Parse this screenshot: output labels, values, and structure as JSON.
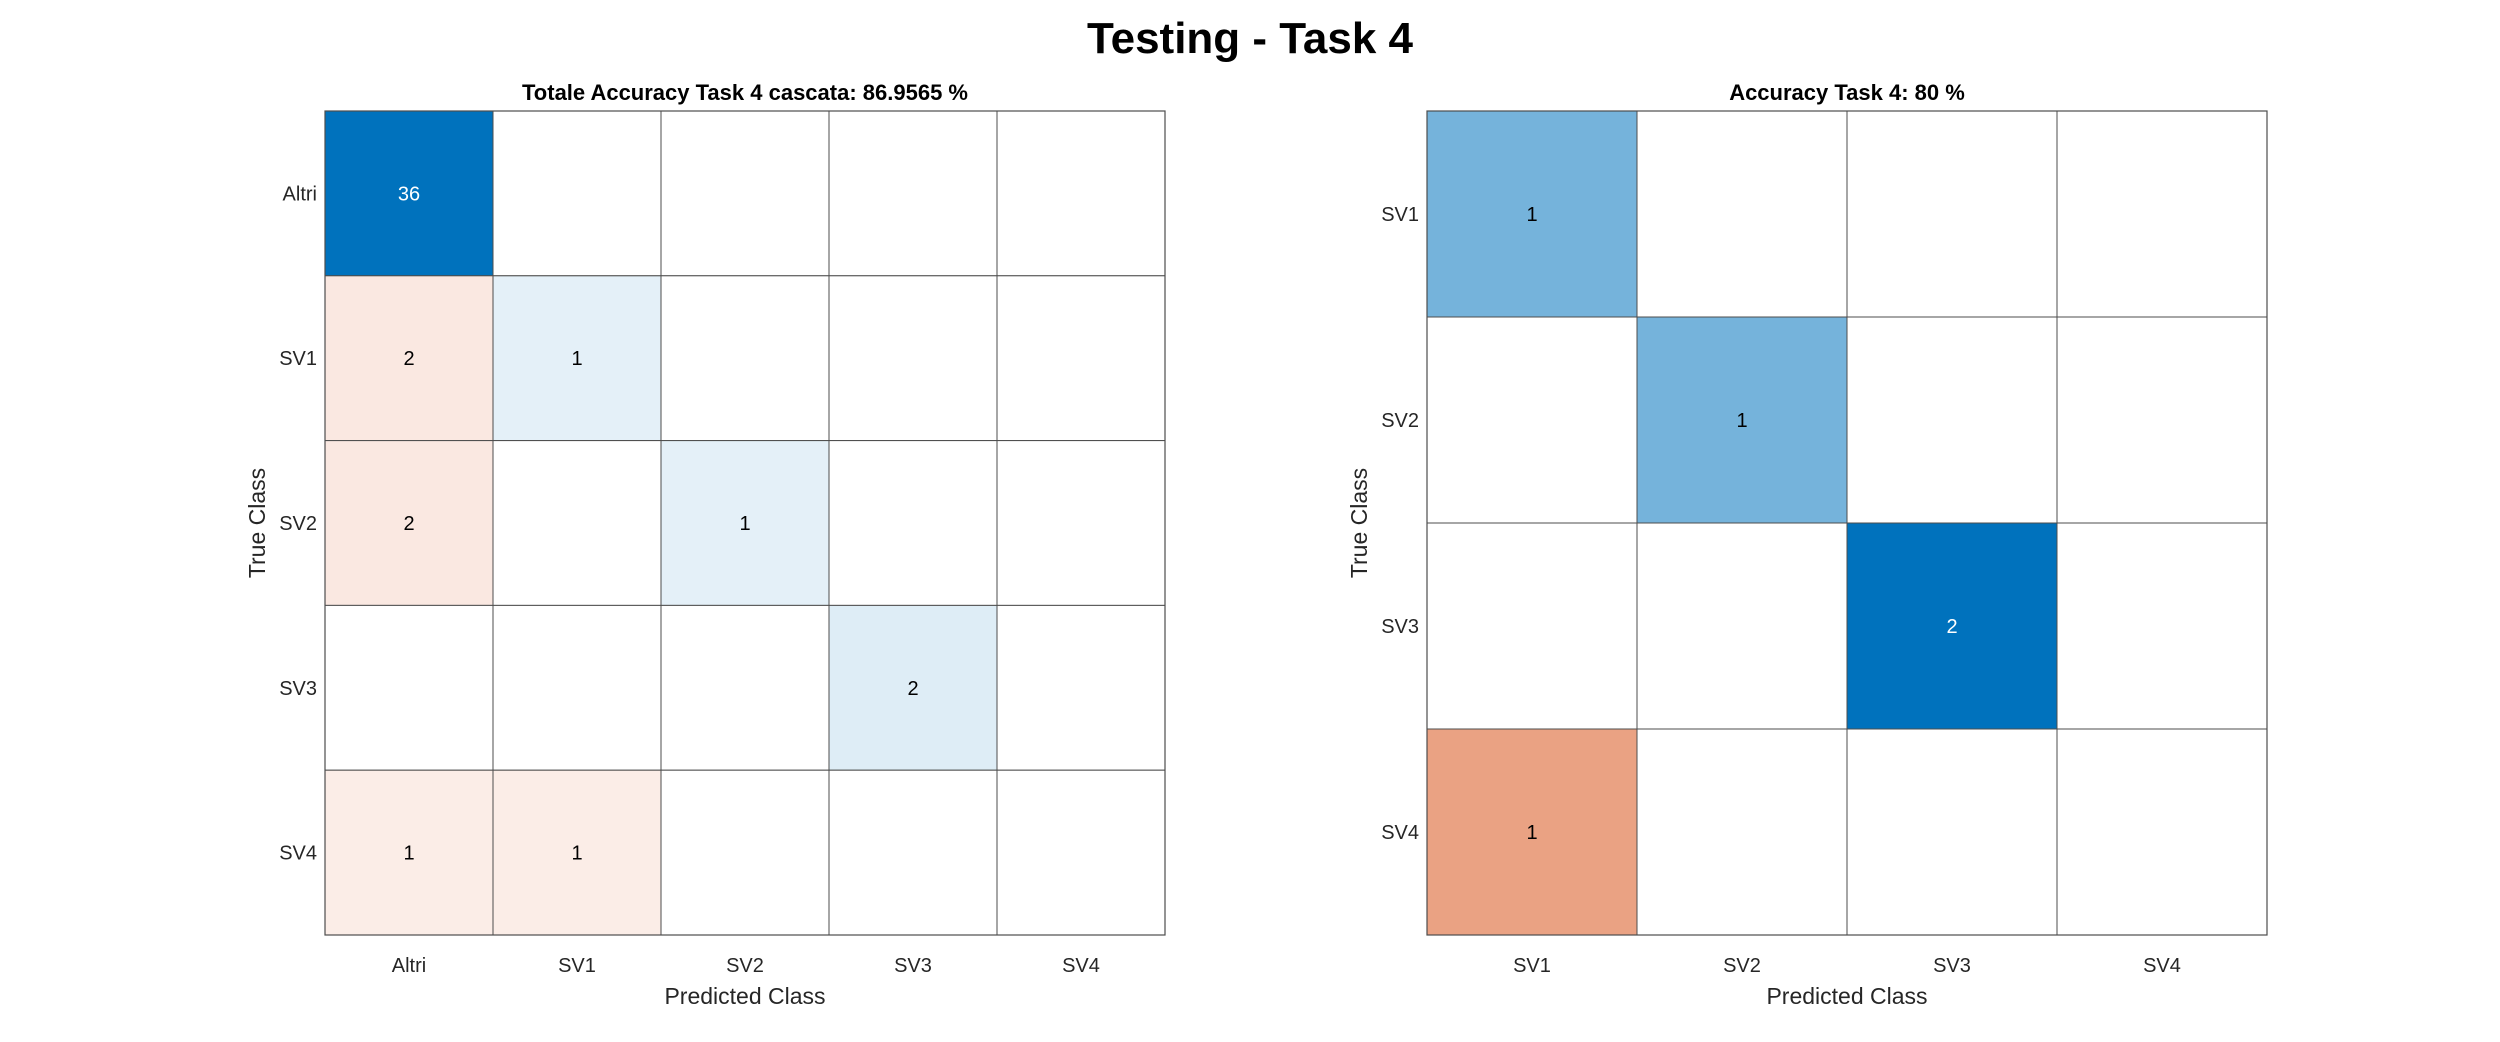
{
  "figure": {
    "title": "Testing - Task 4"
  },
  "chart_data": [
    {
      "type": "heatmap",
      "title": "Totale Accuracy Task 4 cascata: 86.9565 %",
      "xlabel": "Predicted Class",
      "ylabel": "True Class",
      "row_labels": [
        "Altri",
        "SV1",
        "SV2",
        "SV3",
        "SV4"
      ],
      "col_labels": [
        "Altri",
        "SV1",
        "SV2",
        "SV3",
        "SV4"
      ],
      "matrix": [
        [
          36,
          0,
          0,
          0,
          0
        ],
        [
          2,
          1,
          0,
          0,
          0
        ],
        [
          2,
          0,
          1,
          0,
          0
        ],
        [
          0,
          0,
          0,
          2,
          0
        ],
        [
          1,
          1,
          0,
          0,
          0
        ]
      ],
      "colors": {
        "correct": "#0072bd",
        "incorrect": "#d95319",
        "grid": "#4d4d4d"
      }
    },
    {
      "type": "heatmap",
      "title": "Accuracy Task 4: 80 %",
      "xlabel": "Predicted Class",
      "ylabel": "True Class",
      "row_labels": [
        "SV1",
        "SV2",
        "SV3",
        "SV4"
      ],
      "col_labels": [
        "SV1",
        "SV2",
        "SV3",
        "SV4"
      ],
      "matrix": [
        [
          1,
          0,
          0,
          0
        ],
        [
          0,
          1,
          0,
          0
        ],
        [
          0,
          0,
          2,
          0
        ],
        [
          1,
          0,
          0,
          0
        ]
      ],
      "colors": {
        "correct": "#0072bd",
        "incorrect": "#d95319",
        "grid": "#4d4d4d"
      }
    }
  ]
}
